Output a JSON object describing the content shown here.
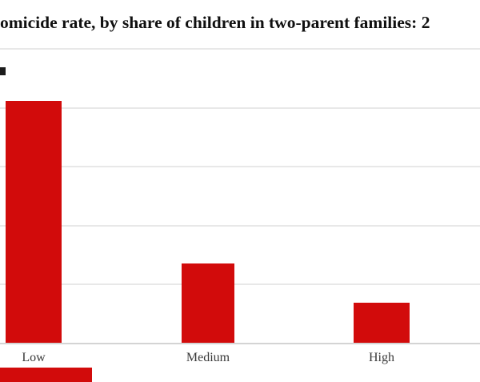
{
  "header": {
    "title": "omicide rate, by share of children in two-parent families: 2"
  },
  "chart_data": {
    "type": "bar",
    "title": "omicide rate, by share of children in two-parent families: 2",
    "categories": [
      "Low",
      "Medium",
      "High"
    ],
    "values": [
      4.1,
      1.35,
      0.68
    ],
    "value_unit_note": "y-axis tick labels cropped out of frame; values estimated in gridline intervals above baseline",
    "xlabel": "",
    "ylabel": "",
    "ylim": [
      0,
      5
    ],
    "gridline_count": 5,
    "grid": true,
    "legend_position": "none",
    "colors": {
      "bar": "#d20b0b",
      "gridline": "#e8e8e8",
      "axis_line": "#d4d4d4",
      "label_text": "#3a3a3a",
      "title_text": "#101010",
      "background": "#ffffff",
      "cropped_fragment": "#1c1c1c"
    }
  },
  "fragments": {
    "y_axis_label_fragment": "cropped dark glyph sliver at left edge",
    "legend_swatch_fragment": "cropped red swatch at bottom-left corner"
  }
}
